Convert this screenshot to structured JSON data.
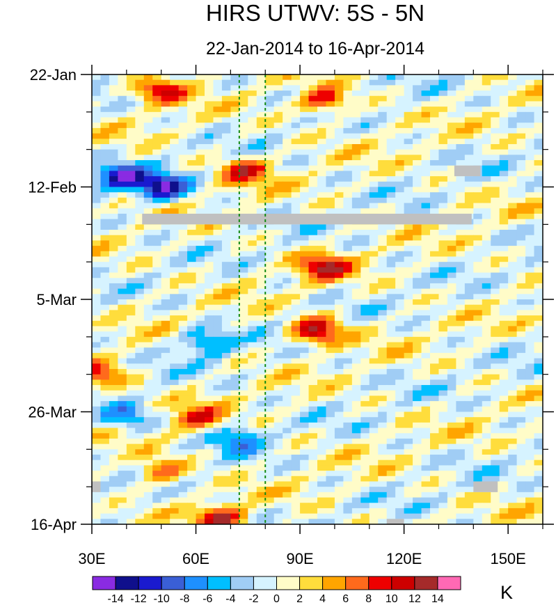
{
  "chart_data": {
    "type": "heatmap",
    "title": "HIRS UTWV: 5S - 5N",
    "subtitle": "22-Jan-2014 to 16-Apr-2014",
    "x_axis": {
      "range": [
        30,
        160
      ],
      "ticks": [
        30,
        60,
        90,
        120,
        150
      ],
      "tick_labels": [
        "30E",
        "60E",
        "90E",
        "120E",
        "150E"
      ]
    },
    "y_axis": {
      "range_days": [
        0,
        84
      ],
      "ticks_days": [
        0,
        21,
        42,
        63,
        84
      ],
      "tick_labels": [
        "22-Jan",
        "12-Feb",
        "5-Mar",
        "26-Mar",
        "16-Apr"
      ],
      "direction": "downward"
    },
    "reference_lines_lon": [
      72.5,
      80
    ],
    "missing_data_boxes": [
      {
        "lon": [
          44.5,
          139.5
        ],
        "day": [
          26,
          28
        ]
      },
      {
        "lon": [
          134.5,
          142
        ],
        "day": [
          17,
          19
        ]
      },
      {
        "lon": [
          140,
          147
        ],
        "day": [
          76,
          78
        ]
      },
      {
        "lon": [
          30,
          32.5
        ],
        "day": [
          76,
          78
        ]
      },
      {
        "lon": [
          115,
          120
        ],
        "day": [
          83,
          84
        ]
      }
    ],
    "colorbar": {
      "unit": "K",
      "levels": [
        -14,
        -12,
        -10,
        -8,
        -6,
        -4,
        -2,
        0,
        2,
        4,
        6,
        8,
        10,
        12,
        14
      ],
      "tick_labels": [
        "-14",
        "-12",
        "-10",
        "-8",
        "-6",
        "-4",
        "-2",
        "0",
        "2",
        "4",
        "6",
        "8",
        "10",
        "12",
        "14"
      ],
      "colors": [
        "#8a2be2",
        "#0f0f8c",
        "#1a1acf",
        "#3a5fd6",
        "#1e90ff",
        "#00bfff",
        "#a0cdf5",
        "#d6f3ff",
        "#fffcc8",
        "#ffdd3c",
        "#ffa500",
        "#ff6a1c",
        "#ee0000",
        "#cd0000",
        "#a52a2a",
        "#ff69b4"
      ]
    },
    "features": [
      {
        "lon": 50,
        "day": 3,
        "value": 10
      },
      {
        "lon": 97,
        "day": 5,
        "value": 10
      },
      {
        "lon": 74,
        "day": 18,
        "value": 10
      },
      {
        "lon": 38,
        "day": 19,
        "value": -12
      },
      {
        "lon": 50,
        "day": 21,
        "value": -13
      },
      {
        "lon": 97,
        "day": 36,
        "value": 11
      },
      {
        "lon": 95,
        "day": 48,
        "value": 13
      },
      {
        "lon": 63,
        "day": 50,
        "value": -8
      },
      {
        "lon": 33,
        "day": 56,
        "value": 8
      },
      {
        "lon": 60,
        "day": 64,
        "value": 8
      },
      {
        "lon": 40,
        "day": 64,
        "value": -7
      },
      {
        "lon": 72,
        "day": 68,
        "value": -7
      },
      {
        "lon": 50,
        "day": 74,
        "value": 8
      },
      {
        "lon": 67,
        "day": 83,
        "value": 11
      }
    ]
  }
}
